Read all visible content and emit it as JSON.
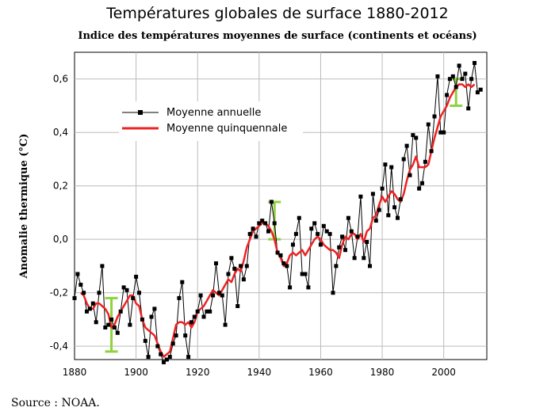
{
  "chart_data": {
    "type": "line",
    "title": "Températures globales de surface 1880-2012",
    "subtitle": "Indice des températures moyennes de surface (continents et océans)",
    "xlabel": "",
    "ylabel": "Anomalie thermique (°C)",
    "xlim": [
      1880,
      2014
    ],
    "ylim": [
      -0.45,
      0.7
    ],
    "xticks": [
      1880,
      1900,
      1920,
      1940,
      1960,
      1980,
      2000
    ],
    "yticks": [
      -0.4,
      -0.2,
      0.0,
      0.2,
      0.4,
      0.6
    ],
    "ytick_labels": [
      "-0,4",
      "-0,2",
      "0,0",
      "0,2",
      "0,4",
      "0,6"
    ],
    "grid": true,
    "legend_position": "upper-left",
    "series": [
      {
        "name": "Moyenne annuelle",
        "color": "#000000",
        "marker": "square",
        "x": [
          1880,
          1881,
          1882,
          1883,
          1884,
          1885,
          1886,
          1887,
          1888,
          1889,
          1890,
          1891,
          1892,
          1893,
          1894,
          1895,
          1896,
          1897,
          1898,
          1899,
          1900,
          1901,
          1902,
          1903,
          1904,
          1905,
          1906,
          1907,
          1908,
          1909,
          1910,
          1911,
          1912,
          1913,
          1914,
          1915,
          1916,
          1917,
          1918,
          1919,
          1920,
          1921,
          1922,
          1923,
          1924,
          1925,
          1926,
          1927,
          1928,
          1929,
          1930,
          1931,
          1932,
          1933,
          1934,
          1935,
          1936,
          1937,
          1938,
          1939,
          1940,
          1941,
          1942,
          1943,
          1944,
          1945,
          1946,
          1947,
          1948,
          1949,
          1950,
          1951,
          1952,
          1953,
          1954,
          1955,
          1956,
          1957,
          1958,
          1959,
          1960,
          1961,
          1962,
          1963,
          1964,
          1965,
          1966,
          1967,
          1968,
          1969,
          1970,
          1971,
          1972,
          1973,
          1974,
          1975,
          1976,
          1977,
          1978,
          1979,
          1980,
          1981,
          1982,
          1983,
          1984,
          1985,
          1986,
          1987,
          1988,
          1989,
          1990,
          1991,
          1992,
          1993,
          1994,
          1995,
          1996,
          1997,
          1998,
          1999,
          2000,
          2001,
          2002,
          2003,
          2004,
          2005,
          2006,
          2007,
          2008,
          2009,
          2010,
          2011,
          2012
        ],
        "values": [
          -0.22,
          -0.13,
          -0.17,
          -0.2,
          -0.27,
          -0.26,
          -0.24,
          -0.31,
          -0.2,
          -0.1,
          -0.33,
          -0.32,
          -0.3,
          -0.33,
          -0.35,
          -0.27,
          -0.18,
          -0.19,
          -0.32,
          -0.22,
          -0.14,
          -0.2,
          -0.3,
          -0.38,
          -0.44,
          -0.29,
          -0.26,
          -0.4,
          -0.43,
          -0.46,
          -0.45,
          -0.44,
          -0.39,
          -0.36,
          -0.22,
          -0.16,
          -0.36,
          -0.44,
          -0.31,
          -0.29,
          -0.27,
          -0.21,
          -0.29,
          -0.27,
          -0.27,
          -0.21,
          -0.09,
          -0.2,
          -0.21,
          -0.32,
          -0.13,
          -0.07,
          -0.11,
          -0.25,
          -0.1,
          -0.15,
          -0.1,
          0.02,
          0.04,
          0.01,
          0.06,
          0.07,
          0.06,
          0.03,
          0.14,
          0.06,
          -0.05,
          -0.06,
          -0.09,
          -0.1,
          -0.18,
          -0.02,
          0.02,
          0.08,
          -0.13,
          -0.13,
          -0.18,
          0.04,
          0.06,
          0.02,
          -0.02,
          0.05,
          0.03,
          0.02,
          -0.2,
          -0.1,
          -0.03,
          0.01,
          -0.04,
          0.08,
          0.03,
          -0.07,
          0.01,
          0.16,
          -0.07,
          -0.01,
          -0.1,
          0.17,
          0.07,
          0.11,
          0.19,
          0.28,
          0.09,
          0.27,
          0.12,
          0.08,
          0.15,
          0.3,
          0.35,
          0.24,
          0.39,
          0.38,
          0.19,
          0.21,
          0.29,
          0.43,
          0.33,
          0.46,
          0.61,
          0.4,
          0.4,
          0.54,
          0.6,
          0.61,
          0.57,
          0.65,
          0.6,
          0.62,
          0.49,
          0.6,
          0.66,
          0.55,
          0.56
        ]
      },
      {
        "name": "Moyenne quinquennale",
        "color": "#ff0000",
        "x": [
          1882,
          1883,
          1884,
          1885,
          1886,
          1887,
          1888,
          1889,
          1890,
          1891,
          1892,
          1893,
          1894,
          1895,
          1896,
          1897,
          1898,
          1899,
          1900,
          1901,
          1902,
          1903,
          1904,
          1905,
          1906,
          1907,
          1908,
          1909,
          1910,
          1911,
          1912,
          1913,
          1914,
          1915,
          1916,
          1917,
          1918,
          1919,
          1920,
          1921,
          1922,
          1923,
          1924,
          1925,
          1926,
          1927,
          1928,
          1929,
          1930,
          1931,
          1932,
          1933,
          1934,
          1935,
          1936,
          1937,
          1938,
          1939,
          1940,
          1941,
          1942,
          1943,
          1944,
          1945,
          1946,
          1947,
          1948,
          1949,
          1950,
          1951,
          1952,
          1953,
          1954,
          1955,
          1956,
          1957,
          1958,
          1959,
          1960,
          1961,
          1962,
          1963,
          1964,
          1965,
          1966,
          1967,
          1968,
          1969,
          1970,
          1971,
          1972,
          1973,
          1974,
          1975,
          1976,
          1977,
          1978,
          1979,
          1980,
          1981,
          1982,
          1983,
          1984,
          1985,
          1986,
          1987,
          1988,
          1989,
          1990,
          1991,
          1992,
          1993,
          1994,
          1995,
          1996,
          1997,
          1998,
          1999,
          2000,
          2001,
          2002,
          2003,
          2004,
          2005,
          2006,
          2007,
          2008,
          2009,
          2010
        ],
        "values": [
          -0.2,
          -0.21,
          -0.24,
          -0.26,
          -0.26,
          -0.24,
          -0.24,
          -0.25,
          -0.26,
          -0.28,
          -0.33,
          -0.32,
          -0.29,
          -0.27,
          -0.25,
          -0.23,
          -0.21,
          -0.21,
          -0.24,
          -0.25,
          -0.3,
          -0.33,
          -0.34,
          -0.35,
          -0.36,
          -0.39,
          -0.42,
          -0.44,
          -0.43,
          -0.42,
          -0.37,
          -0.32,
          -0.31,
          -0.31,
          -0.32,
          -0.31,
          -0.33,
          -0.31,
          -0.27,
          -0.26,
          -0.25,
          -0.23,
          -0.21,
          -0.19,
          -0.2,
          -0.21,
          -0.19,
          -0.17,
          -0.15,
          -0.16,
          -0.13,
          -0.11,
          -0.12,
          -0.08,
          -0.03,
          0.0,
          0.03,
          0.04,
          0.05,
          0.06,
          0.06,
          0.05,
          0.03,
          0.0,
          -0.05,
          -0.07,
          -0.1,
          -0.09,
          -0.06,
          -0.05,
          -0.06,
          -0.05,
          -0.04,
          -0.06,
          -0.04,
          -0.02,
          0.0,
          0.01,
          0.0,
          -0.02,
          -0.03,
          -0.04,
          -0.04,
          -0.05,
          -0.07,
          -0.02,
          0.01,
          0.0,
          0.02,
          0.02,
          0.0,
          0.02,
          -0.01,
          0.03,
          0.04,
          0.08,
          0.09,
          0.13,
          0.16,
          0.14,
          0.16,
          0.18,
          0.17,
          0.15,
          0.14,
          0.17,
          0.22,
          0.26,
          0.28,
          0.31,
          0.27,
          0.27,
          0.27,
          0.28,
          0.33,
          0.38,
          0.42,
          0.46,
          0.48,
          0.5,
          0.53,
          0.55,
          0.57,
          0.58,
          0.58,
          0.57,
          0.58,
          0.57,
          0.58
        ]
      }
    ],
    "error_bars": [
      {
        "x": 1892,
        "low": -0.42,
        "high": -0.22,
        "color": "#8fd13f"
      },
      {
        "x": 1945,
        "low": 0.0,
        "high": 0.14,
        "color": "#8fd13f"
      },
      {
        "x": 2004,
        "low": 0.5,
        "high": 0.6,
        "color": "#8fd13f"
      }
    ]
  },
  "source": "Source : NOAA."
}
